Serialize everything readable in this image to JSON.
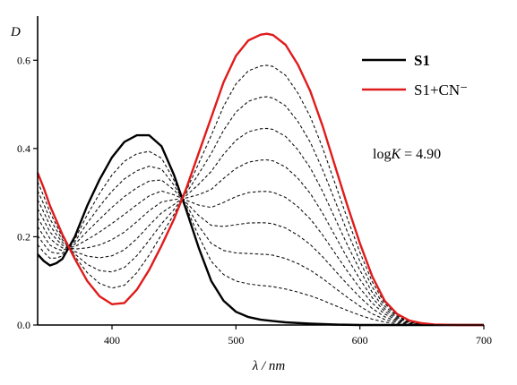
{
  "chart_data": {
    "type": "line",
    "title": "",
    "xlabel": "λ / nm",
    "ylabel": "D",
    "xlim": [
      340,
      700
    ],
    "ylim": [
      0,
      0.7
    ],
    "x_ticks": [
      400,
      500,
      600,
      700
    ],
    "x_tick_labels": [
      "400",
      "500",
      "600",
      "700"
    ],
    "y_ticks": [
      0.0,
      0.2,
      0.4,
      0.6
    ],
    "y_tick_labels": [
      "0.0",
      "0.2",
      "0.4",
      "0.6"
    ],
    "grid": false,
    "legend_position": "top-right",
    "annotation": {
      "prefix": "log",
      "italic": "K",
      "suffix": " = 4.90"
    },
    "series": [
      {
        "name": "S1",
        "role": "initial",
        "color": "#000000",
        "style": "solid",
        "x": [
          340,
          345,
          350,
          355,
          360,
          370,
          380,
          390,
          400,
          410,
          420,
          430,
          440,
          450,
          460,
          470,
          480,
          490,
          500,
          510,
          520,
          530,
          540,
          560,
          580,
          600,
          650,
          700
        ],
        "y": [
          0.16,
          0.145,
          0.135,
          0.14,
          0.15,
          0.2,
          0.27,
          0.33,
          0.38,
          0.415,
          0.43,
          0.43,
          0.405,
          0.34,
          0.26,
          0.175,
          0.1,
          0.055,
          0.03,
          0.018,
          0.012,
          0.009,
          0.006,
          0.003,
          0.001,
          0.0,
          0.0,
          0.0
        ]
      },
      {
        "name": "S1+CN⁻",
        "role": "final",
        "color": "#e01b1b",
        "style": "solid",
        "x": [
          340,
          345,
          350,
          360,
          370,
          380,
          390,
          400,
          410,
          420,
          430,
          440,
          450,
          460,
          470,
          480,
          490,
          500,
          510,
          520,
          525,
          530,
          540,
          550,
          560,
          570,
          580,
          590,
          600,
          610,
          620,
          630,
          640,
          650,
          660,
          680,
          700
        ],
        "y": [
          0.345,
          0.31,
          0.27,
          0.205,
          0.15,
          0.1,
          0.065,
          0.047,
          0.05,
          0.08,
          0.125,
          0.18,
          0.24,
          0.31,
          0.39,
          0.47,
          0.55,
          0.61,
          0.645,
          0.658,
          0.66,
          0.657,
          0.635,
          0.59,
          0.53,
          0.45,
          0.36,
          0.27,
          0.185,
          0.11,
          0.055,
          0.025,
          0.01,
          0.004,
          0.001,
          0.0,
          0.0
        ]
      }
    ],
    "intermediate_fractions": [
      0.12,
      0.23,
      0.34,
      0.45,
      0.56,
      0.67,
      0.78,
      0.89
    ]
  }
}
